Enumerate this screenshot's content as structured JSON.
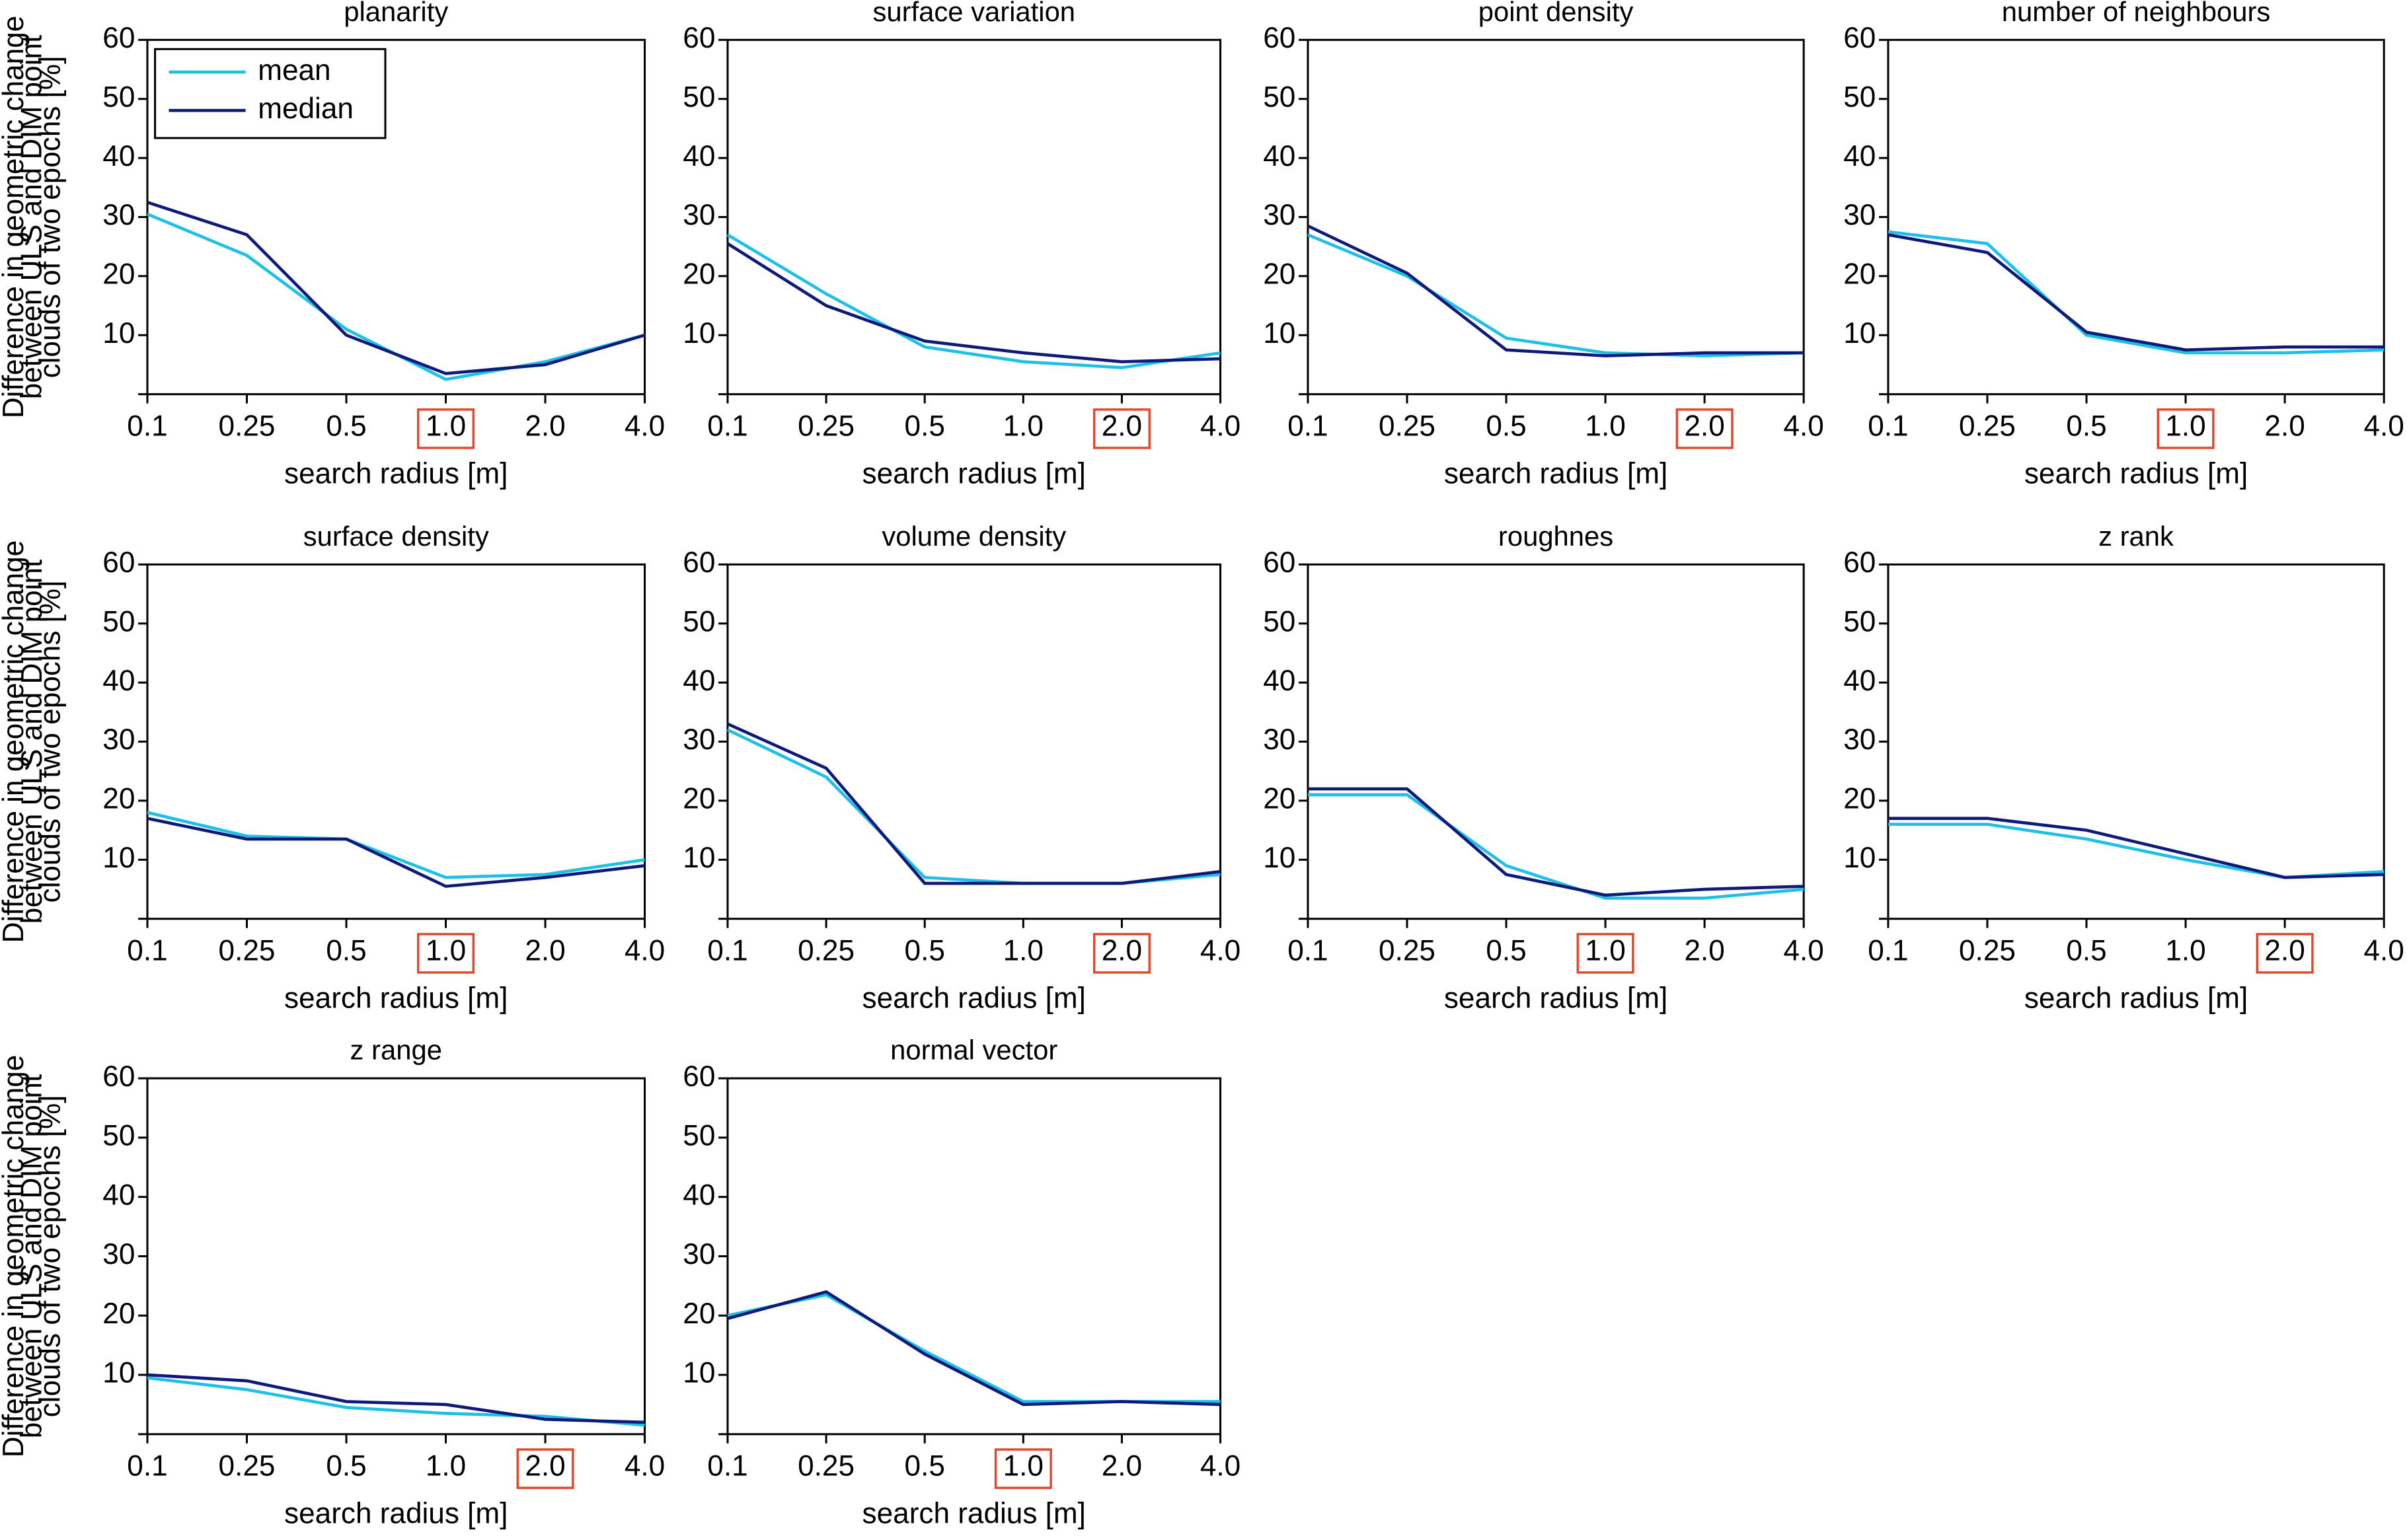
{
  "chart_data": [
    {
      "type": "line",
      "title": "planarity",
      "categories": [
        "0.1",
        "0.25",
        "0.5",
        "1.0",
        "2.0",
        "4.0"
      ],
      "highlight_index": 3,
      "xlabel": "search radius [m]",
      "ylabel": [
        "Difference in geometric change",
        "between ULS and DIM point",
        "clouds of two epochs [%]"
      ],
      "legend": "upper left",
      "ylim": [
        0,
        60
      ],
      "yticks": [
        10,
        20,
        30,
        40,
        50,
        60
      ],
      "series": [
        {
          "name": "mean",
          "color": "#1ec0e8",
          "values": [
            30.5,
            23.5,
            11,
            2.5,
            5.5,
            10
          ]
        },
        {
          "name": "median",
          "color": "#0d1a7a",
          "values": [
            32.5,
            27,
            10,
            3.5,
            5,
            10
          ]
        }
      ]
    },
    {
      "type": "line",
      "title": "surface variation",
      "categories": [
        "0.1",
        "0.25",
        "0.5",
        "1.0",
        "2.0",
        "4.0"
      ],
      "highlight_index": 4,
      "xlabel": "search radius [m]",
      "ylim": [
        0,
        60
      ],
      "yticks": [
        10,
        20,
        30,
        40,
        50,
        60
      ],
      "series": [
        {
          "color": "#1ec0e8",
          "values": [
            27,
            17,
            8,
            5.5,
            4.5,
            7
          ]
        },
        {
          "color": "#0d1a7a",
          "values": [
            25.5,
            15,
            9,
            7,
            5.5,
            6
          ]
        }
      ]
    },
    {
      "type": "line",
      "title": "point density",
      "categories": [
        "0.1",
        "0.25",
        "0.5",
        "1.0",
        "2.0",
        "4.0"
      ],
      "highlight_index": 4,
      "xlabel": "search radius [m]",
      "ylim": [
        0,
        60
      ],
      "yticks": [
        10,
        20,
        30,
        40,
        50,
        60
      ],
      "series": [
        {
          "color": "#1ec0e8",
          "values": [
            27,
            20,
            9.5,
            7,
            6.5,
            7
          ]
        },
        {
          "color": "#0d1a7a",
          "values": [
            28.5,
            20.5,
            7.5,
            6.5,
            7,
            7
          ]
        }
      ]
    },
    {
      "type": "line",
      "title": "number of neighbours",
      "categories": [
        "0.1",
        "0.25",
        "0.5",
        "1.0",
        "2.0",
        "4.0"
      ],
      "highlight_index": 3,
      "xlabel": "search radius [m]",
      "ylim": [
        0,
        60
      ],
      "yticks": [
        10,
        20,
        30,
        40,
        50,
        60
      ],
      "series": [
        {
          "color": "#1ec0e8",
          "values": [
            27.5,
            25.5,
            10,
            7,
            7,
            7.5
          ]
        },
        {
          "color": "#0d1a7a",
          "values": [
            27,
            24,
            10.5,
            7.5,
            8,
            8
          ]
        }
      ]
    },
    {
      "type": "line",
      "title": "surface density",
      "categories": [
        "0.1",
        "0.25",
        "0.5",
        "1.0",
        "2.0",
        "4.0"
      ],
      "highlight_index": 3,
      "xlabel": "search radius [m]",
      "ylabel": [
        "Difference in geometric change",
        "between ULS and DIM point",
        "clouds of two epochs [%]"
      ],
      "ylim": [
        0,
        60
      ],
      "yticks": [
        10,
        20,
        30,
        40,
        50,
        60
      ],
      "series": [
        {
          "color": "#1ec0e8",
          "values": [
            18,
            14,
            13.5,
            7,
            7.5,
            10
          ]
        },
        {
          "color": "#0d1a7a",
          "values": [
            17,
            13.5,
            13.5,
            5.5,
            7,
            9
          ]
        }
      ]
    },
    {
      "type": "line",
      "title": "volume density",
      "categories": [
        "0.1",
        "0.25",
        "0.5",
        "1.0",
        "2.0",
        "4.0"
      ],
      "highlight_index": 4,
      "xlabel": "search radius [m]",
      "ylim": [
        0,
        60
      ],
      "yticks": [
        10,
        20,
        30,
        40,
        50,
        60
      ],
      "series": [
        {
          "color": "#1ec0e8",
          "values": [
            32,
            24,
            7,
            6,
            6,
            7.5
          ]
        },
        {
          "color": "#0d1a7a",
          "values": [
            33,
            25.5,
            6,
            6,
            6,
            8
          ]
        }
      ]
    },
    {
      "type": "line",
      "title": "roughnes",
      "categories": [
        "0.1",
        "0.25",
        "0.5",
        "1.0",
        "2.0",
        "4.0"
      ],
      "highlight_index": 3,
      "xlabel": "search radius [m]",
      "ylim": [
        0,
        60
      ],
      "yticks": [
        10,
        20,
        30,
        40,
        50,
        60
      ],
      "series": [
        {
          "color": "#1ec0e8",
          "values": [
            21,
            21,
            9,
            3.5,
            3.5,
            5
          ]
        },
        {
          "color": "#0d1a7a",
          "values": [
            22,
            22,
            7.5,
            4,
            5,
            5.5
          ]
        }
      ]
    },
    {
      "type": "line",
      "title": "z rank",
      "categories": [
        "0.1",
        "0.25",
        "0.5",
        "1.0",
        "2.0",
        "4.0"
      ],
      "highlight_index": 4,
      "xlabel": "search radius [m]",
      "ylim": [
        0,
        60
      ],
      "yticks": [
        10,
        20,
        30,
        40,
        50,
        60
      ],
      "series": [
        {
          "color": "#1ec0e8",
          "values": [
            16,
            16,
            13.5,
            10,
            7,
            8
          ]
        },
        {
          "color": "#0d1a7a",
          "values": [
            17,
            17,
            15,
            11,
            7,
            7.5
          ]
        }
      ]
    },
    {
      "type": "line",
      "title": "z range",
      "categories": [
        "0.1",
        "0.25",
        "0.5",
        "1.0",
        "2.0",
        "4.0"
      ],
      "highlight_index": 4,
      "xlabel": "search radius [m]",
      "ylabel": [
        "Difference in geometric change",
        "between ULS and DIM point",
        "clouds of two epochs [%]"
      ],
      "ylim": [
        0,
        60
      ],
      "yticks": [
        10,
        20,
        30,
        40,
        50,
        60
      ],
      "series": [
        {
          "color": "#1ec0e8",
          "values": [
            9.5,
            7.5,
            4.5,
            3.5,
            3,
            1.5
          ]
        },
        {
          "color": "#0d1a7a",
          "values": [
            10,
            9,
            5.5,
            5,
            2.5,
            2
          ]
        }
      ]
    },
    {
      "type": "line",
      "title": "normal vector",
      "categories": [
        "0.1",
        "0.25",
        "0.5",
        "1.0",
        "2.0",
        "4.0"
      ],
      "highlight_index": 3,
      "xlabel": "search radius [m]",
      "ylim": [
        0,
        60
      ],
      "yticks": [
        10,
        20,
        30,
        40,
        50,
        60
      ],
      "series": [
        {
          "color": "#1ec0e8",
          "values": [
            20,
            23.5,
            14,
            5.5,
            5.5,
            5.5
          ]
        },
        {
          "color": "#0d1a7a",
          "values": [
            19.5,
            24,
            13.5,
            5,
            5.5,
            5
          ]
        }
      ]
    }
  ]
}
